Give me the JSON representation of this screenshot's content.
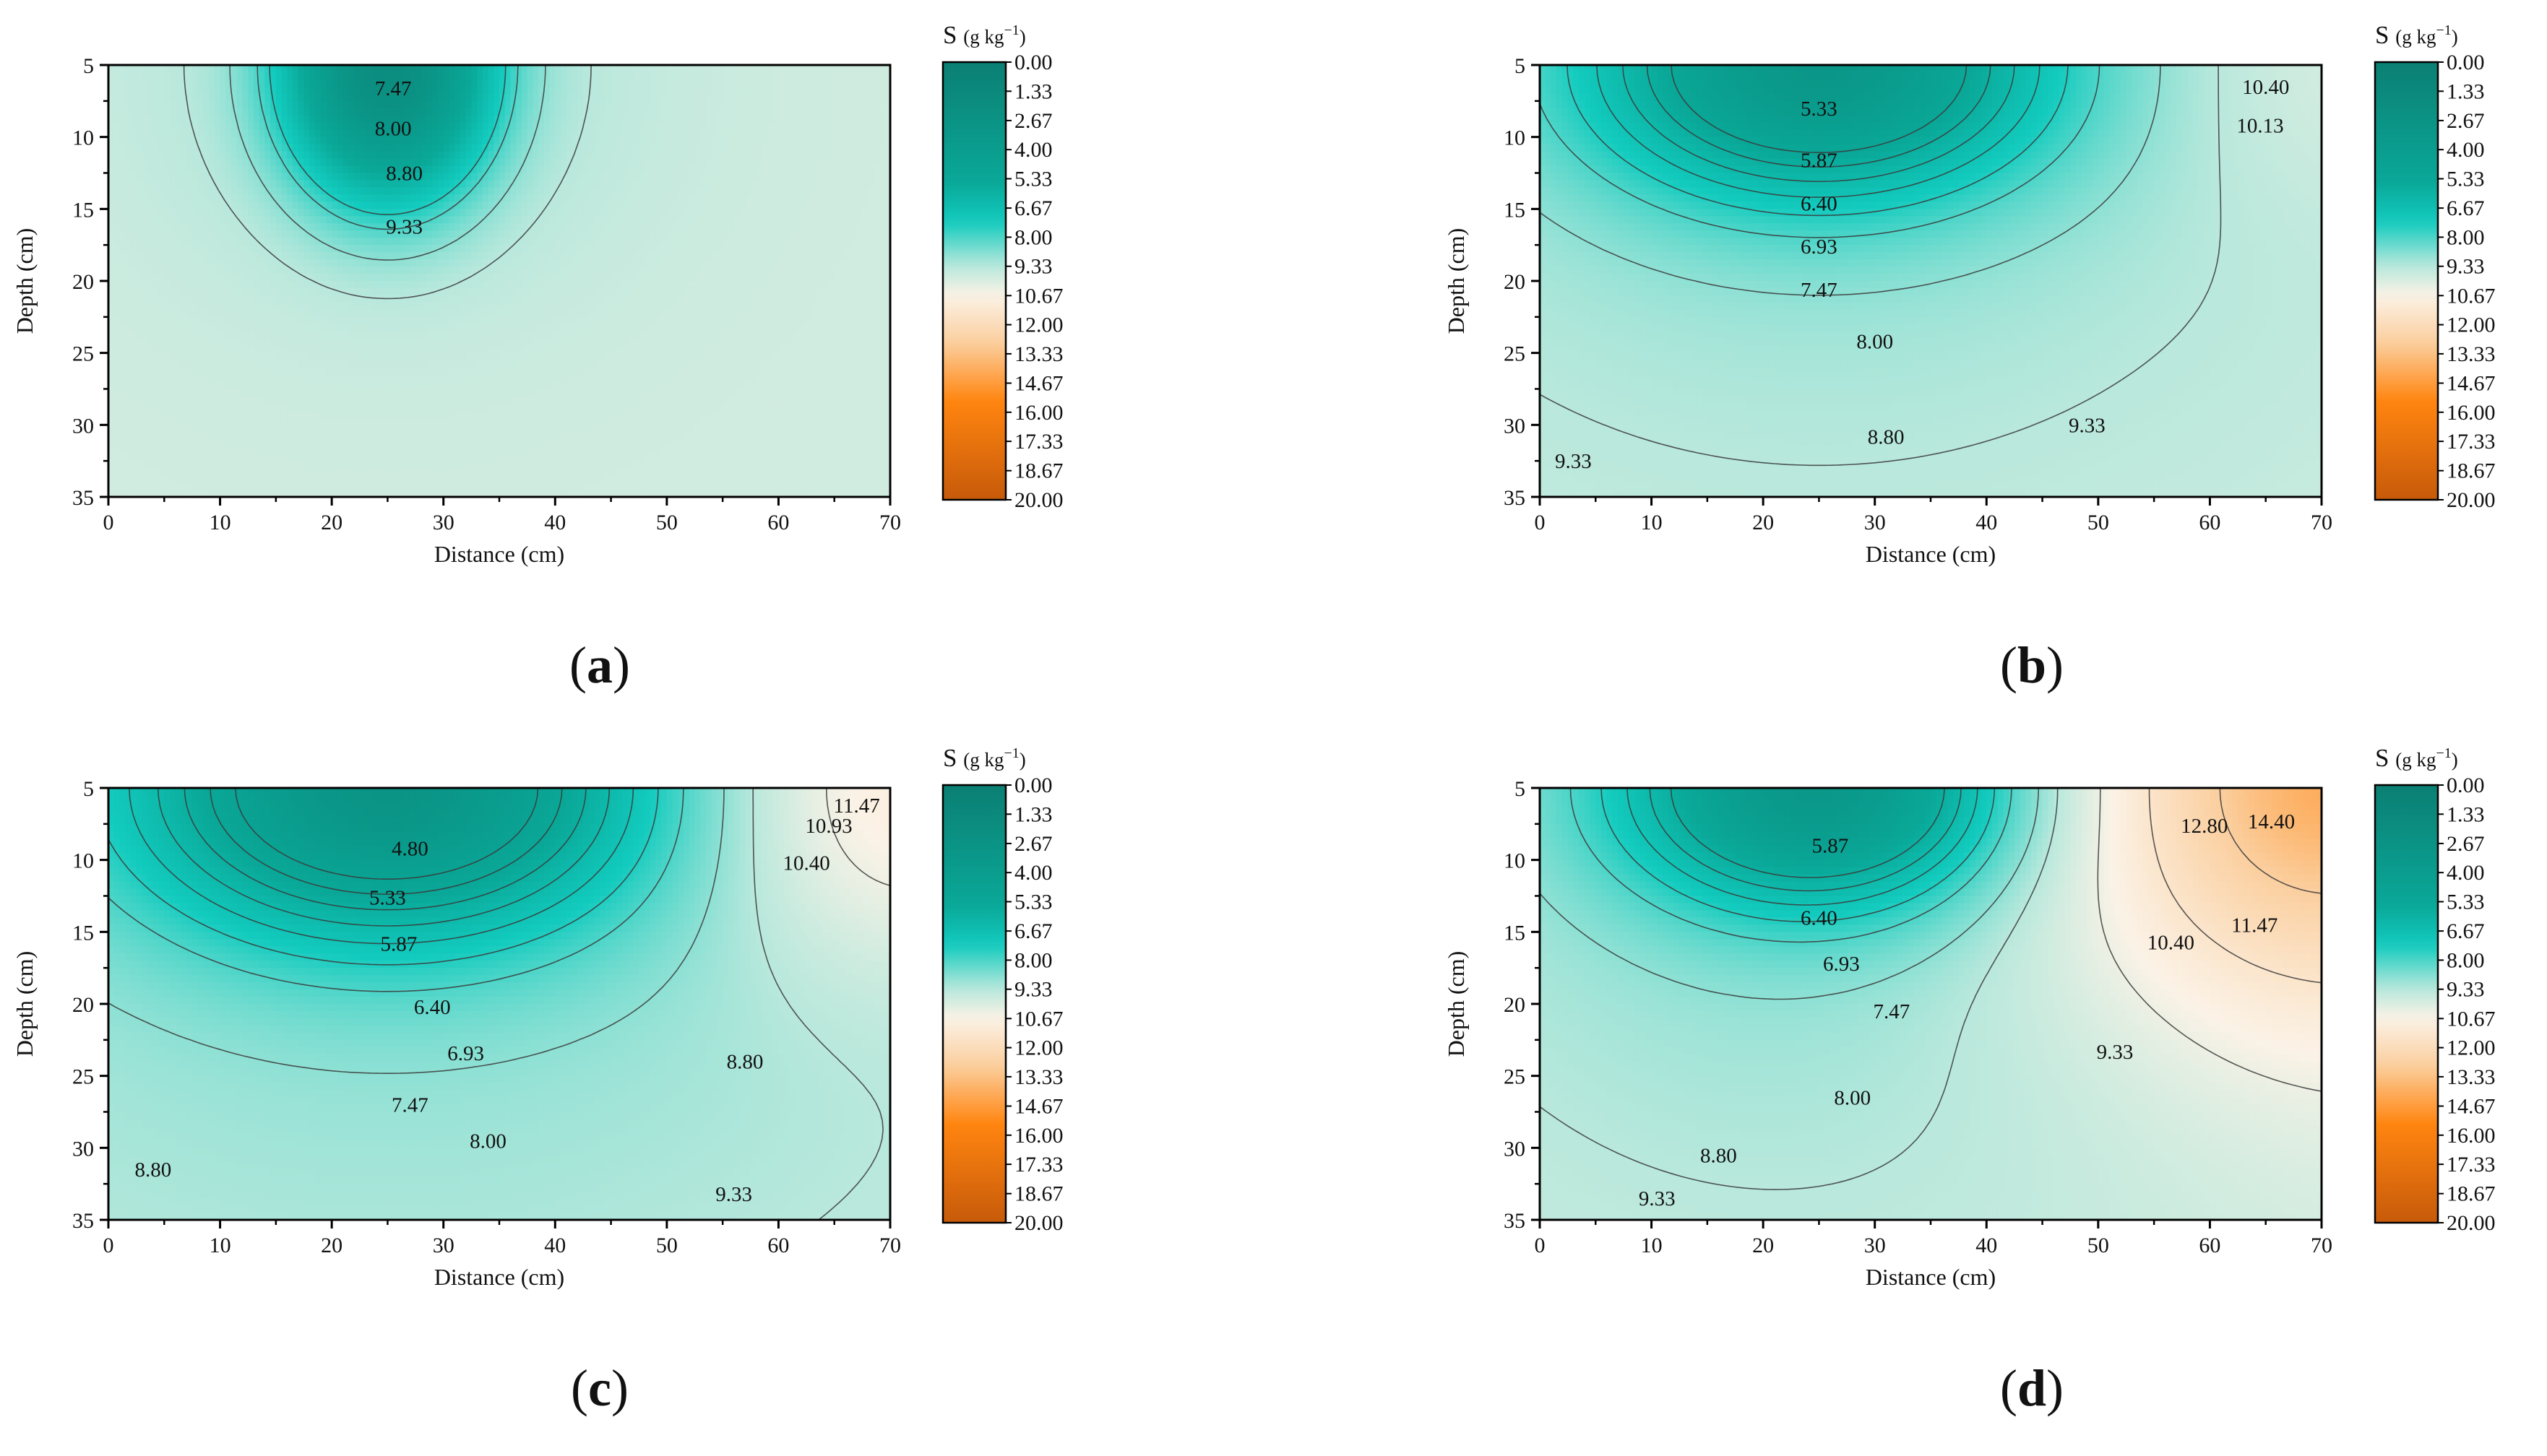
{
  "figure": {
    "panel_labels": [
      "a",
      "b",
      "c",
      "d"
    ]
  },
  "colorbar": {
    "title_symbol": "S",
    "title_units": "(g kg",
    "title_exp": "−1",
    "title_close": ")",
    "ticks": [
      "0.00",
      "1.33",
      "2.67",
      "4.00",
      "5.33",
      "6.67",
      "8.00",
      "9.33",
      "10.67",
      "12.00",
      "13.33",
      "14.67",
      "16.00",
      "17.33",
      "18.67",
      "20.00"
    ],
    "palette": [
      "#0b7f73",
      "#0aa898",
      "#12cbbe",
      "#b9e8dc",
      "#fbf2e6",
      "#fbcf9f",
      "#ff8510",
      "#c75a0a"
    ],
    "palette_stops": [
      0,
      5.5,
      7.3,
      9.33,
      10.67,
      12.8,
      15.5,
      20
    ]
  },
  "chart_data": [
    {
      "type": "contour",
      "panel": "a",
      "title": "",
      "xlabel": "Distance (cm)",
      "ylabel": "Depth (cm)",
      "xlim": [
        0,
        70
      ],
      "ylim": [
        5,
        35
      ],
      "x_ticks": [
        "0",
        "10",
        "20",
        "30",
        "40",
        "50",
        "60",
        "70"
      ],
      "y_ticks": [
        "5",
        "10",
        "15",
        "20",
        "25",
        "30",
        "35"
      ],
      "background_value": 9.8,
      "sources": [
        {
          "x": 25,
          "y": 5,
          "value": 7.2,
          "rx": 9,
          "ry": 9,
          "sharp": 2.2
        },
        {
          "x": 25,
          "y": 5,
          "value": 0.7,
          "rx": 24,
          "ry": 17,
          "sharp": 2.2
        }
      ],
      "contour_levels": [
        7.47,
        8.0,
        8.8,
        9.33
      ],
      "labels": [
        {
          "text": "7.47",
          "x": 25.5,
          "y": 6.6
        },
        {
          "text": "8.00",
          "x": 25.5,
          "y": 9.4
        },
        {
          "text": "8.80",
          "x": 26.5,
          "y": 12.5
        },
        {
          "text": "9.33",
          "x": 26.5,
          "y": 16.2
        }
      ]
    },
    {
      "type": "contour",
      "panel": "b",
      "title": "",
      "xlabel": "Distance (cm)",
      "ylabel": "Depth (cm)",
      "xlim": [
        0,
        70
      ],
      "ylim": [
        5,
        35
      ],
      "x_ticks": [
        "0",
        "10",
        "20",
        "30",
        "40",
        "50",
        "60",
        "70"
      ],
      "y_ticks": [
        "5",
        "10",
        "15",
        "20",
        "25",
        "30",
        "35"
      ],
      "background_value": 10.2,
      "sources": [
        {
          "x": 25,
          "y": 5,
          "value": 5.4,
          "rx": 20,
          "ry": 9,
          "sharp": 2.0
        },
        {
          "x": 25,
          "y": 5,
          "value": 1.6,
          "rx": 66,
          "ry": 42,
          "sharp": 1.2
        },
        {
          "x": 70,
          "y": 5,
          "value": -0.5,
          "rx": 15,
          "ry": 10,
          "sharp": 2.0
        }
      ],
      "contour_levels": [
        5.33,
        5.87,
        6.4,
        6.93,
        7.47,
        8.0,
        8.8,
        9.33,
        10.13,
        10.4
      ],
      "labels": [
        {
          "text": "5.33",
          "x": 25,
          "y": 8.0
        },
        {
          "text": "5.87",
          "x": 25,
          "y": 11.6
        },
        {
          "text": "6.40",
          "x": 25,
          "y": 14.6
        },
        {
          "text": "6.93",
          "x": 25,
          "y": 17.6
        },
        {
          "text": "7.47",
          "x": 25,
          "y": 20.6
        },
        {
          "text": "8.00",
          "x": 30,
          "y": 24.2
        },
        {
          "text": "8.80",
          "x": 31,
          "y": 30.8
        },
        {
          "text": "9.33",
          "x": 49,
          "y": 30.0
        },
        {
          "text": "9.33",
          "x": 3,
          "y": 32.5
        },
        {
          "text": "10.40",
          "x": 65,
          "y": 6.5
        },
        {
          "text": "10.13",
          "x": 64.5,
          "y": 9.2
        }
      ]
    },
    {
      "type": "contour",
      "panel": "c",
      "title": "",
      "xlabel": "Distance (cm)",
      "ylabel": "Depth (cm)",
      "xlim": [
        0,
        70
      ],
      "ylim": [
        5,
        35
      ],
      "x_ticks": [
        "0",
        "10",
        "20",
        "30",
        "40",
        "50",
        "60",
        "70"
      ],
      "y_ticks": [
        "5",
        "10",
        "15",
        "20",
        "25",
        "30",
        "35"
      ],
      "background_value": 10.0,
      "sources": [
        {
          "x": 25,
          "y": 5,
          "value": 5.6,
          "rx": 22,
          "ry": 10,
          "sharp": 2.0
        },
        {
          "x": 25,
          "y": 5,
          "value": 1.6,
          "rx": 68,
          "ry": 44,
          "sharp": 1.2
        },
        {
          "x": 70,
          "y": 5,
          "value": -1.8,
          "rx": 16,
          "ry": 12,
          "sharp": 2.0
        }
      ],
      "contour_levels": [
        4.8,
        5.33,
        5.87,
        6.4,
        6.93,
        7.47,
        8.0,
        8.8,
        9.33,
        10.4,
        10.93,
        11.47
      ],
      "labels": [
        {
          "text": "4.80",
          "x": 27,
          "y": 9.2
        },
        {
          "text": "5.33",
          "x": 25,
          "y": 12.6
        },
        {
          "text": "5.87",
          "x": 26,
          "y": 15.8
        },
        {
          "text": "6.40",
          "x": 29,
          "y": 20.2
        },
        {
          "text": "6.93",
          "x": 32,
          "y": 23.4
        },
        {
          "text": "7.47",
          "x": 27,
          "y": 27.0
        },
        {
          "text": "8.00",
          "x": 34,
          "y": 29.5
        },
        {
          "text": "8.80",
          "x": 57,
          "y": 24.0
        },
        {
          "text": "8.80",
          "x": 4,
          "y": 31.5
        },
        {
          "text": "9.33",
          "x": 56,
          "y": 33.2
        },
        {
          "text": "11.47",
          "x": 67,
          "y": 6.2
        },
        {
          "text": "10.93",
          "x": 64.5,
          "y": 7.6
        },
        {
          "text": "10.40",
          "x": 62.5,
          "y": 10.2
        }
      ]
    },
    {
      "type": "contour",
      "panel": "d",
      "title": "",
      "xlabel": "Distance (cm)",
      "ylabel": "Depth (cm)",
      "xlim": [
        0,
        70
      ],
      "ylim": [
        5,
        35
      ],
      "x_ticks": [
        "0",
        "10",
        "20",
        "30",
        "40",
        "50",
        "60",
        "70"
      ],
      "y_ticks": [
        "5",
        "10",
        "15",
        "20",
        "25",
        "30",
        "35"
      ],
      "background_value": 10.3,
      "sources": [
        {
          "x": 25,
          "y": 5,
          "value": 5.3,
          "rx": 17,
          "ry": 8,
          "sharp": 2.0
        },
        {
          "x": 25,
          "y": 5,
          "value": 1.9,
          "rx": 55,
          "ry": 40,
          "sharp": 1.2
        },
        {
          "x": 70,
          "y": 5,
          "value": -4.6,
          "rx": 22,
          "ry": 15,
          "sharp": 1.6
        }
      ],
      "contour_levels": [
        5.87,
        6.4,
        6.93,
        7.47,
        8.0,
        8.8,
        9.33,
        10.4,
        11.47,
        12.8,
        14.4
      ],
      "labels": [
        {
          "text": "5.87",
          "x": 26,
          "y": 9.0
        },
        {
          "text": "6.40",
          "x": 25,
          "y": 14.0
        },
        {
          "text": "6.93",
          "x": 27,
          "y": 17.2
        },
        {
          "text": "7.47",
          "x": 31.5,
          "y": 20.5
        },
        {
          "text": "8.00",
          "x": 28,
          "y": 26.5
        },
        {
          "text": "8.80",
          "x": 16,
          "y": 30.5
        },
        {
          "text": "9.33",
          "x": 10.5,
          "y": 33.5
        },
        {
          "text": "9.33",
          "x": 51.5,
          "y": 23.3
        },
        {
          "text": "10.40",
          "x": 56.5,
          "y": 15.7
        },
        {
          "text": "11.47",
          "x": 64,
          "y": 14.5
        },
        {
          "text": "12.80",
          "x": 59.5,
          "y": 7.6
        },
        {
          "text": "14.40",
          "x": 65.5,
          "y": 7.3
        }
      ]
    }
  ]
}
